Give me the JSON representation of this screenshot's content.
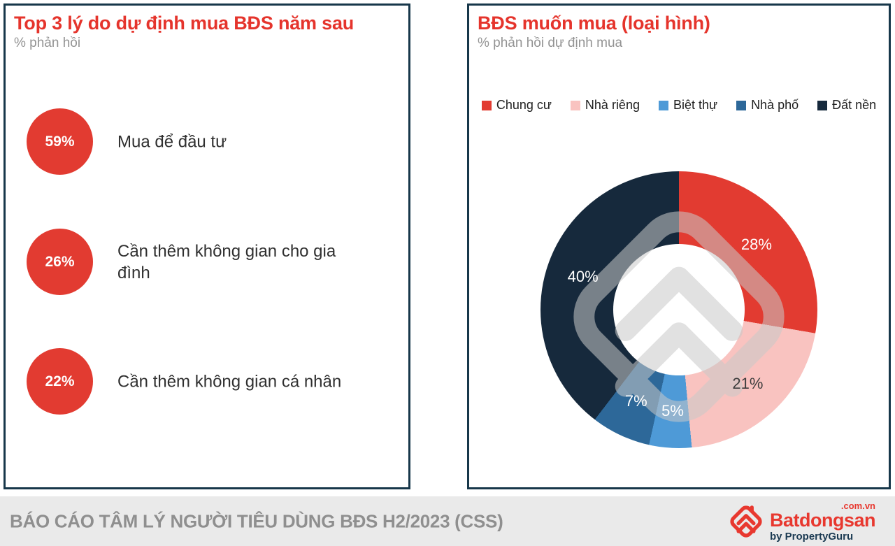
{
  "left_panel": {
    "title": "Top 3 lý do dự định mua BĐS năm sau",
    "subtitle": "% phản hồi",
    "accent_color": "#e23b31",
    "reasons": [
      {
        "value": "59%",
        "label": "Mua để đầu tư"
      },
      {
        "value": "26%",
        "label": "Cần thêm không gian cho gia đình"
      },
      {
        "value": "22%",
        "label": "Cần thêm không gian cá nhân"
      }
    ]
  },
  "right_panel": {
    "title": "BĐS muốn mua (loại hình)",
    "subtitle": "% phản hồi dự định mua"
  },
  "chart_data": {
    "type": "pie",
    "donut": true,
    "title": "BĐS muốn mua (loại hình)",
    "subtitle": "% phản hồi dự định mua",
    "categories": [
      "Chung cư",
      "Nhà riêng",
      "Biệt thự",
      "Nhà phố",
      "Đất nền"
    ],
    "values": [
      28,
      21,
      5,
      7,
      40
    ],
    "unit": "%",
    "colors": [
      "#e23b31",
      "#f9c3c0",
      "#4e9ad7",
      "#2d6899",
      "#16293c"
    ],
    "label_colors": [
      "#ffffff",
      "#3d3d3d",
      "#ffffff",
      "#ffffff",
      "#ffffff"
    ],
    "start_angle_deg": 0,
    "direction": "clockwise",
    "legend_position": "top"
  },
  "footer": {
    "source_text": "BÁO CÁO TÂM LÝ NGƯỜI TIÊU DÙNG BĐS H2/2023 (CSS)",
    "logo": {
      "brand": "Batdongsan",
      "domain": ".com.vn",
      "byline": "by PropertyGuru",
      "brand_color": "#e8382f",
      "byline_color": "#1b3a52"
    }
  }
}
